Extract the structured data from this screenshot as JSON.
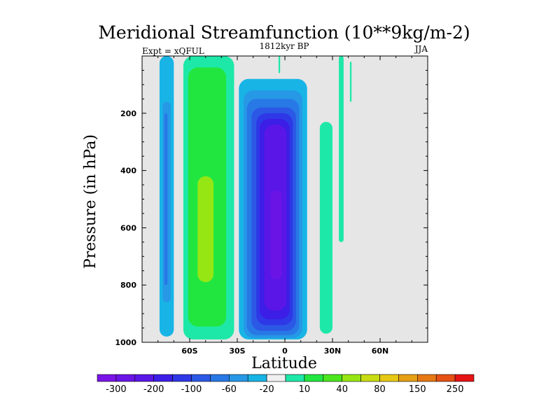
{
  "chart_data": {
    "type": "contour",
    "title": "Meridional Streamfunction (10**9kg/m-2)",
    "left_label": "Expt = xQFUL",
    "center_label": "1812kyr BP",
    "right_label": "JJA",
    "xlabel": "Latitude",
    "ylabel": "Pressure (in hPa)",
    "xlim": [
      -90,
      90
    ],
    "ylim": [
      0,
      1000
    ],
    "y_inverted": true,
    "x_ticks": [
      {
        "value": -60,
        "label": "60S"
      },
      {
        "value": -30,
        "label": "30S"
      },
      {
        "value": 0,
        "label": "0"
      },
      {
        "value": 30,
        "label": "30N"
      },
      {
        "value": 60,
        "label": "60N"
      }
    ],
    "y_ticks": [
      200,
      400,
      600,
      800,
      1000
    ],
    "colorbar": {
      "colors": [
        "#7a14e6",
        "#6a14e6",
        "#5a16e6",
        "#3c1ee6",
        "#2e38e6",
        "#2c58e6",
        "#2878e6",
        "#2698e6",
        "#18b4e6",
        "#f0f0f0",
        "#1ee8a8",
        "#22e640",
        "#4be61e",
        "#96e614",
        "#c8dc14",
        "#e6c814",
        "#e6a014",
        "#e67814",
        "#e65014",
        "#e61414"
      ],
      "labels": [
        {
          "after": 1,
          "text": "-300"
        },
        {
          "after": 3,
          "text": "-200"
        },
        {
          "after": 5,
          "text": "-100"
        },
        {
          "after": 7,
          "text": "-60"
        },
        {
          "after": 9,
          "text": "-20"
        },
        {
          "after": 11,
          "text": "10"
        },
        {
          "after": 13,
          "text": "40"
        },
        {
          "after": 15,
          "text": "80"
        },
        {
          "after": 17,
          "text": "150"
        },
        {
          "after": 19,
          "text": "250"
        }
      ]
    },
    "contour_cells": [
      {
        "name": "sh-polar-cell",
        "level": -20,
        "color": "#18b4e6",
        "lat": [
          -79,
          -70
        ],
        "p": [
          0,
          980
        ]
      },
      {
        "name": "sh-polar-cell-inner",
        "level": -40,
        "color": "#2698e6",
        "lat": [
          -77,
          -72
        ],
        "p": [
          160,
          860
        ]
      },
      {
        "name": "sh-polar-cell-core",
        "level": -60,
        "color": "#2878e6",
        "lat": [
          -76,
          -74
        ],
        "p": [
          200,
          800
        ]
      },
      {
        "name": "sh-ferrel-cell",
        "level": 20,
        "color": "#1ee8a8",
        "lat": [
          -64,
          -32
        ],
        "p": [
          0,
          990
        ]
      },
      {
        "name": "sh-ferrel-cell-inner",
        "level": 40,
        "color": "#22e640",
        "lat": [
          -61,
          -37
        ],
        "p": [
          40,
          945
        ]
      },
      {
        "name": "sh-ferrel-cell-core",
        "level": 60,
        "color": "#96e614",
        "lat": [
          -55,
          -45
        ],
        "p": [
          420,
          790
        ]
      },
      {
        "name": "hadley-cell-l1",
        "level": -20,
        "color": "#18b4e6",
        "lat": [
          -29,
          14
        ],
        "p": [
          80,
          990
        ]
      },
      {
        "name": "hadley-cell-l2",
        "level": -40,
        "color": "#2698e6",
        "lat": [
          -26,
          11
        ],
        "p": [
          120,
          985
        ]
      },
      {
        "name": "hadley-cell-l3",
        "level": -60,
        "color": "#2878e6",
        "lat": [
          -24,
          9
        ],
        "p": [
          150,
          975
        ]
      },
      {
        "name": "hadley-cell-l4",
        "level": -80,
        "color": "#2c58e6",
        "lat": [
          -21,
          7
        ],
        "p": [
          180,
          960
        ]
      },
      {
        "name": "hadley-cell-l5",
        "level": -100,
        "color": "#2e38e6",
        "lat": [
          -18,
          5
        ],
        "p": [
          200,
          940
        ]
      },
      {
        "name": "hadley-cell-l6",
        "level": -150,
        "color": "#3c1ee6",
        "lat": [
          -16,
          3
        ],
        "p": [
          220,
          920
        ]
      },
      {
        "name": "hadley-cell-l7",
        "level": -200,
        "color": "#5a16e6",
        "lat": [
          -13,
          1
        ],
        "p": [
          240,
          890
        ]
      },
      {
        "name": "hadley-cell-core",
        "level": -250,
        "color": "#6a14e6",
        "lat": [
          -9,
          -2
        ],
        "p": [
          470,
          780
        ]
      },
      {
        "name": "nh-tropical-cell",
        "level": 20,
        "color": "#1ee8a8",
        "lat": [
          22,
          30
        ],
        "p": [
          230,
          970
        ]
      },
      {
        "name": "nh-thin-cell",
        "level": 20,
        "color": "#1ee8a8",
        "lat": [
          34,
          37
        ],
        "p": [
          0,
          650
        ]
      },
      {
        "name": "nh-small-cell",
        "level": 20,
        "color": "#1ee8a8",
        "lat": [
          41,
          42
        ],
        "p": [
          20,
          160
        ]
      },
      {
        "name": "equator-small-cell",
        "level": 20,
        "color": "#1ee8a8",
        "lat": [
          -4,
          -3
        ],
        "p": [
          0,
          60
        ]
      }
    ]
  }
}
